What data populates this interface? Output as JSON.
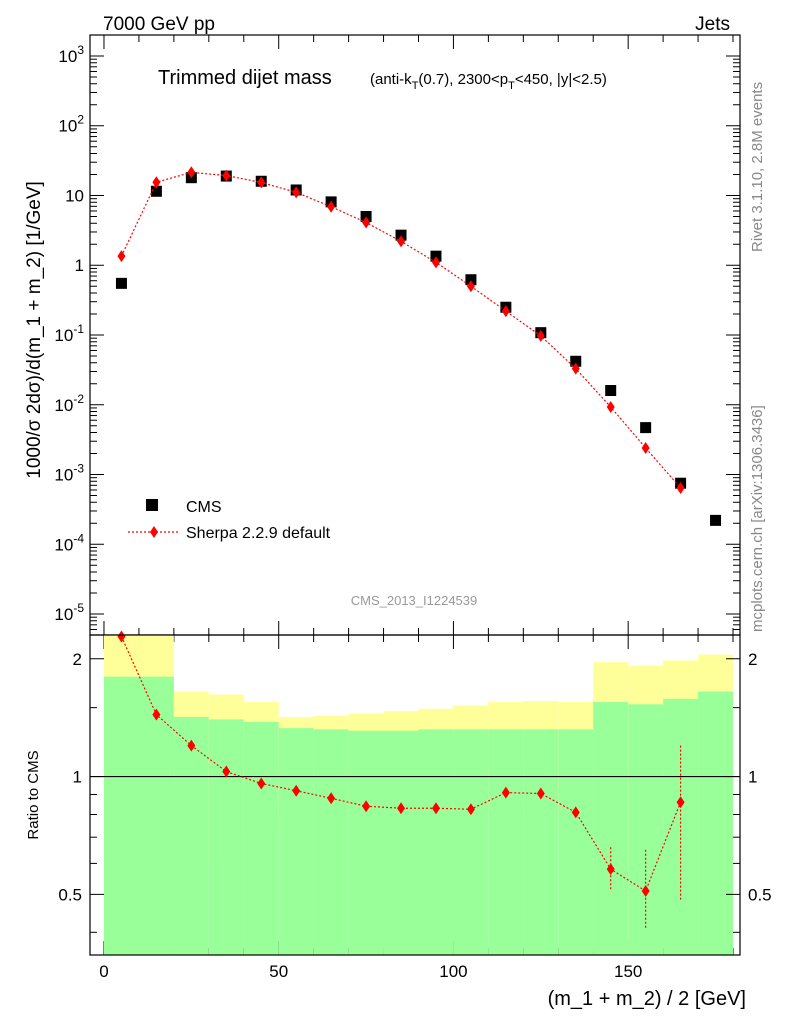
{
  "header": {
    "left": "7000 GeV pp",
    "right": "Jets"
  },
  "side_labels": {
    "top": "Rivet 3.1.10,  2.8M events",
    "bottom": "mcplots.cern.ch [arXiv:1306.3436]"
  },
  "watermark": "CMS_2013_I1224539",
  "colors": {
    "data": "#000000",
    "mc": "#ff0000",
    "band_inner": "#99ff99",
    "band_outer": "#ffff99"
  },
  "chart_data": [
    {
      "type": "scatter",
      "title": "Trimmed dijet mass",
      "subtitle": "(anti-k_T(0.7), 2300<p_T<450, |y|<2.5)",
      "xlabel": "(m_1 + m_2) / 2 [GeV]",
      "ylabel": "1000/σ 2dσ)/d(m_1 + m_2) [1/GeV]",
      "xlim": [
        -4,
        182
      ],
      "ylim": [
        5e-06,
        2000
      ],
      "yscale": "log",
      "ytick_labels": [
        "10^-5",
        "10^-4",
        "10^-3",
        "10^-2",
        "10^-1",
        "1",
        "10",
        "10^2",
        "10^3"
      ],
      "legend": {
        "position": "lower-left",
        "entries": [
          "CMS",
          "Sherpa 2.2.9 default"
        ]
      },
      "series": [
        {
          "name": "CMS",
          "x": [
            5,
            15,
            25,
            35,
            45,
            55,
            65,
            75,
            85,
            95,
            105,
            115,
            125,
            135,
            145,
            155,
            165,
            175
          ],
          "y": [
            0.55,
            11.5,
            18,
            19,
            16,
            12,
            8.1,
            5,
            2.7,
            1.35,
            0.62,
            0.25,
            0.108,
            0.042,
            0.016,
            0.0047,
            0.00075,
            0.00022
          ]
        },
        {
          "name": "Sherpa 2.2.9 default",
          "x": [
            5,
            15,
            25,
            35,
            45,
            55,
            65,
            75,
            85,
            95,
            105,
            115,
            125,
            135,
            145,
            155,
            165
          ],
          "y": [
            1.35,
            15.5,
            21.5,
            19.3,
            15.4,
            11.1,
            6.9,
            4.1,
            2.2,
            1.1,
            0.5,
            0.22,
            0.097,
            0.033,
            0.0093,
            0.0024,
            0.00064
          ]
        }
      ]
    },
    {
      "type": "line",
      "xlabel": "(m_1 + m_2) / 2 [GeV]",
      "ylabel": "Ratio to CMS",
      "xlim": [
        -4,
        182
      ],
      "ylim": [
        0.35,
        2.3
      ],
      "xticks": [
        0,
        50,
        100,
        150
      ],
      "yticks": [
        0.5,
        1,
        2
      ],
      "series": [
        {
          "name": "Sherpa 2.2.9 default",
          "x": [
            5,
            15,
            25,
            35,
            45,
            55,
            65,
            75,
            85,
            95,
            105,
            115,
            125,
            135,
            145,
            155,
            165
          ],
          "y": [
            2.28,
            1.44,
            1.2,
            1.03,
            0.96,
            0.92,
            0.88,
            0.84,
            0.83,
            0.83,
            0.825,
            0.91,
            0.905,
            0.81,
            0.58,
            0.51,
            0.86
          ],
          "yerr_lo": [
            0,
            0,
            0,
            0,
            0,
            0,
            0,
            0,
            0,
            0,
            0,
            0,
            0,
            0,
            0.07,
            0.1,
            0.38
          ],
          "yerr_hi": [
            0,
            0,
            0,
            0,
            0,
            0,
            0,
            0,
            0,
            0,
            0,
            0,
            0,
            0,
            0.08,
            0.14,
            0.34
          ]
        }
      ],
      "bands": {
        "edges": [
          0,
          20,
          30,
          40,
          50,
          60,
          70,
          80,
          90,
          100,
          110,
          120,
          130,
          140,
          150,
          160,
          170,
          180
        ],
        "inner_lo": [
          0.2,
          0.2,
          0.2,
          0.2,
          0.2,
          0.2,
          0.2,
          0.2,
          0.2,
          0.2,
          0.2,
          0.2,
          0.2,
          0.2,
          0.2,
          0.2,
          0.2
        ],
        "inner_hi": [
          1.8,
          1.42,
          1.4,
          1.38,
          1.33,
          1.32,
          1.31,
          1.31,
          1.32,
          1.32,
          1.32,
          1.32,
          1.32,
          1.55,
          1.53,
          1.58,
          1.65
        ],
        "outer_lo": [
          0.2,
          0.6,
          0.6,
          0.72,
          0.8,
          0.8,
          0.8,
          0.8,
          0.8,
          0.8,
          0.8,
          0.8,
          0.8,
          0.2,
          0.2,
          0.5,
          0.2
        ],
        "outer_hi": [
          2.3,
          1.65,
          1.62,
          1.55,
          1.42,
          1.43,
          1.45,
          1.47,
          1.49,
          1.52,
          1.55,
          1.56,
          1.55,
          1.96,
          1.92,
          1.98,
          2.05
        ]
      }
    }
  ]
}
